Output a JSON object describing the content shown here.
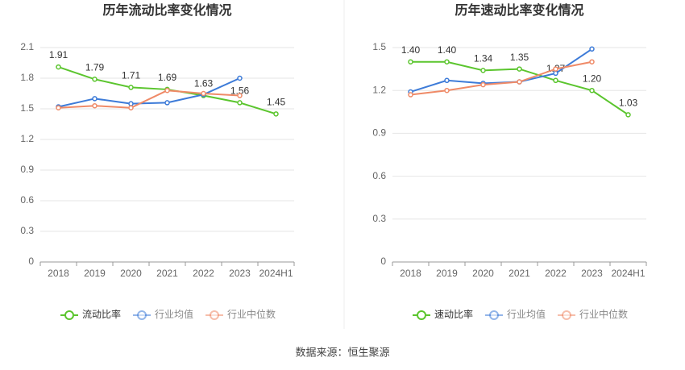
{
  "chart_data": [
    {
      "type": "line",
      "title": "历年流动比率变化情况",
      "categories": [
        "2018",
        "2019",
        "2020",
        "2021",
        "2022",
        "2023",
        "2024H1"
      ],
      "ylim": [
        0,
        2.1
      ],
      "yticks": [
        0,
        0.3,
        0.6,
        0.9,
        1.2,
        1.5,
        1.8,
        2.1
      ],
      "grid": true,
      "series": [
        {
          "name": "流动比率",
          "color": "#5bc52e",
          "values": [
            1.91,
            1.79,
            1.71,
            1.69,
            1.63,
            1.56,
            1.45
          ],
          "value_labels": [
            "1.91",
            "1.79",
            "1.71",
            "1.69",
            "1.63",
            "1.56",
            "1.45"
          ]
        },
        {
          "name": "行业均值",
          "color": "#3d7bd8",
          "values": [
            1.52,
            1.6,
            1.55,
            1.56,
            1.64,
            1.8,
            null
          ]
        },
        {
          "name": "行业中位数",
          "color": "#ef8a67",
          "values": [
            1.51,
            1.53,
            1.51,
            1.68,
            1.65,
            1.63,
            null
          ]
        }
      ]
    },
    {
      "type": "line",
      "title": "历年速动比率变化情况",
      "categories": [
        "2018",
        "2019",
        "2020",
        "2021",
        "2022",
        "2023",
        "2024H1"
      ],
      "ylim": [
        0,
        1.5
      ],
      "yticks": [
        0,
        0.3,
        0.6,
        0.9,
        1.2,
        1.5
      ],
      "grid": true,
      "series": [
        {
          "name": "速动比率",
          "color": "#5bc52e",
          "values": [
            1.4,
            1.4,
            1.34,
            1.35,
            1.27,
            1.2,
            1.03
          ],
          "value_labels": [
            "1.40",
            "1.40",
            "1.34",
            "1.35",
            "1.27",
            "1.20",
            "1.03"
          ]
        },
        {
          "name": "行业均值",
          "color": "#3d7bd8",
          "values": [
            1.19,
            1.27,
            1.25,
            1.26,
            1.32,
            1.49,
            null
          ]
        },
        {
          "name": "行业中位数",
          "color": "#ef8a67",
          "values": [
            1.17,
            1.2,
            1.24,
            1.26,
            1.35,
            1.4,
            null
          ]
        }
      ]
    }
  ],
  "source": "数据来源：恒生聚源"
}
